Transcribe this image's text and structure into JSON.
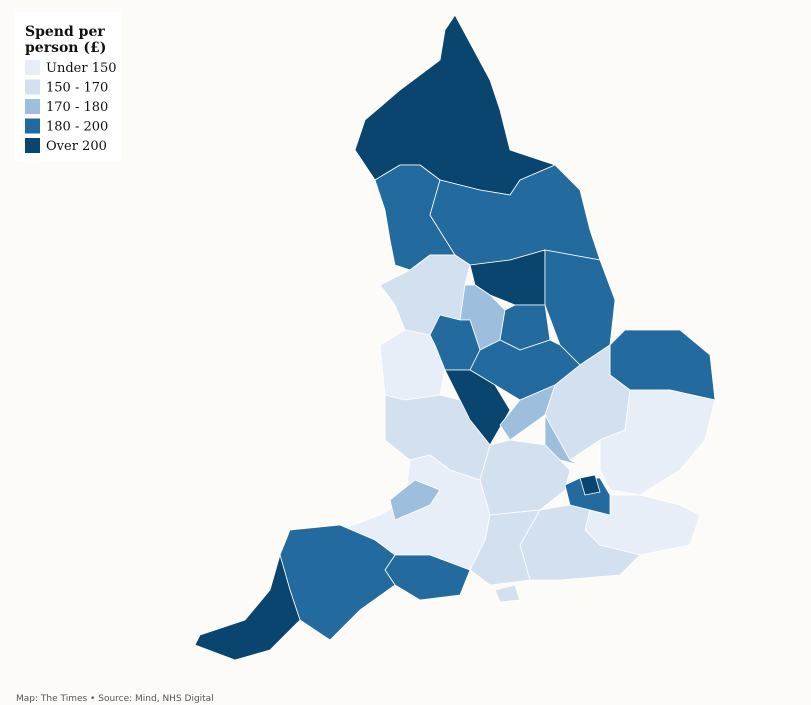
{
  "legend": {
    "title_lines": [
      "Spend per",
      "person (£)"
    ],
    "items": [
      {
        "label": "Under 150",
        "color": "#e8eef7"
      },
      {
        "label": "150 - 170",
        "color": "#d3e0ef"
      },
      {
        "label": "170 - 180",
        "color": "#9dbfdd"
      },
      {
        "label": "180 - 200",
        "color": "#236a9e"
      },
      {
        "label": "Over 200",
        "color": "#0a4570"
      }
    ]
  },
  "source": "Map: The Times • Source: Mind, NHS Digital"
}
